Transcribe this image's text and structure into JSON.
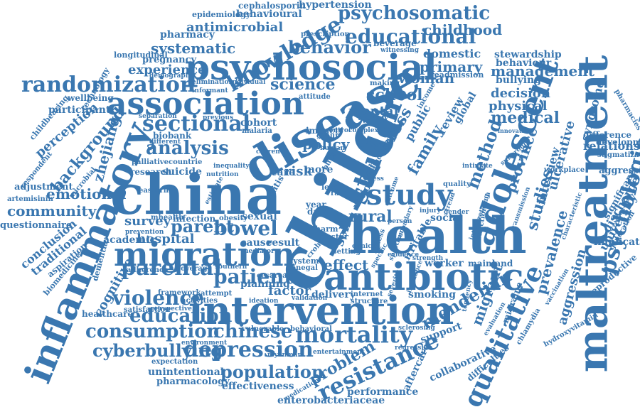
{
  "theme": {
    "word_color": "#3a77b0",
    "background": "#ffffff",
    "orientation": "mixed horizontal and vertical"
  },
  "words": [
    "china",
    "child",
    "health",
    "disease",
    "intervention",
    "antibiotic",
    "psychosocial",
    "maltreatment",
    "migration",
    "inflammatory",
    "association",
    "adolescent",
    "student",
    "study",
    "randomization",
    "knowledge",
    "educational",
    "psychosomatic",
    "qualitative",
    "resistance",
    "mortality",
    "depression",
    "violence",
    "consumption",
    "population",
    "chinese",
    "cyberbullying",
    "parental",
    "sectional",
    "analysis",
    "education",
    "patient",
    "parent",
    "bowel",
    "emotional",
    "background",
    "community",
    "zhejiang",
    "perception",
    "behavior",
    "experience",
    "systematic",
    "antimicrobial",
    "pharmacy",
    "science",
    "woman",
    "school",
    "primary",
    "childhood",
    "domestic",
    "management",
    "decision",
    "physical",
    "medical",
    "family",
    "method",
    "province",
    "psychological",
    "prevalence",
    "aggression",
    "studies",
    "ulcerative",
    "interview",
    "relationship",
    "discharge",
    "university",
    "implication",
    "significant",
    "aggressive",
    "stigmatization",
    "development",
    "difference",
    "stewardship",
    "behaviour",
    "bullying",
    "syndrome",
    "mendelian",
    "migrant",
    "problem",
    "collaborative",
    "difficulties",
    "support",
    "performance",
    "enterobacteriaceae",
    "aftercare",
    "effectiveness",
    "unintentional",
    "pharmacology",
    "expectation",
    "environment",
    "smoking",
    "delivery",
    "factor",
    "planning",
    "effect",
    "worker",
    "mainland",
    "cesarean",
    "cause",
    "result",
    "hospital",
    "survey",
    "academic",
    "suicide",
    "cognitive",
    "healthcare",
    "satisfaction",
    "policy",
    "risk",
    "care",
    "rural",
    "social",
    "cross",
    "public",
    "review",
    "global",
    "mental",
    "cohort",
    "biobank",
    "countrie",
    "research",
    "adjustment",
    "questionnaire",
    "conclusion",
    "traditional",
    "aspiration",
    "biomedicine",
    "dementia",
    "adherence",
    "coverage",
    "southern",
    "system",
    "senegal",
    "irritable",
    "crohn",
    "setting",
    "myanmar",
    "vulnerable",
    "behavioral",
    "entertainment",
    "sclerosing",
    "regression",
    "injury",
    "obesity",
    "sexual",
    "colitis",
    "urban",
    "causal",
    "internet",
    "structure",
    "ideation",
    "validation",
    "attempt",
    "activities",
    "framework",
    "perspective",
    "prevention",
    "infection",
    "mhealth",
    "mediator",
    "epidemiology",
    "cephalosporin",
    "hypertension",
    "behavioural",
    "prescription",
    "beverage",
    "witnessing",
    "readmission",
    "pregnancy",
    "longitudinal",
    "demographic",
    "technology",
    "elimination",
    "informant",
    "individual",
    "wellbeing",
    "participant",
    "childbearing",
    "respondent",
    "separation",
    "previous",
    "malaria",
    "microbial",
    "artemisinin",
    "palliative",
    "eastern",
    "estimate",
    "different",
    "nutrition",
    "inequality",
    "attitude",
    "making",
    "finding",
    "income",
    "therapy",
    "human",
    "current",
    "impact",
    "level",
    "year",
    "data",
    "ratio",
    "self",
    "more",
    "harm",
    "doctor",
    "rate",
    "person",
    "clinical",
    "illness",
    "hydroxyvitamin",
    "vaccination",
    "chlamydia",
    "reproductive",
    "generation",
    "characteristic",
    "transmission",
    "workplace",
    "innovative",
    "intimate",
    "interpretation",
    "quality",
    "functioning",
    "subgroup",
    "evidence",
    "strength",
    "spectrum",
    "incidence",
    "severity",
    "secondary",
    "outcome",
    "stress",
    "tendency",
    "evaluation",
    "migraine",
    "trend",
    "specific",
    "aged",
    "birth",
    "group",
    "control",
    "complex",
    "pharmacies",
    "medication",
    "gender"
  ]
}
